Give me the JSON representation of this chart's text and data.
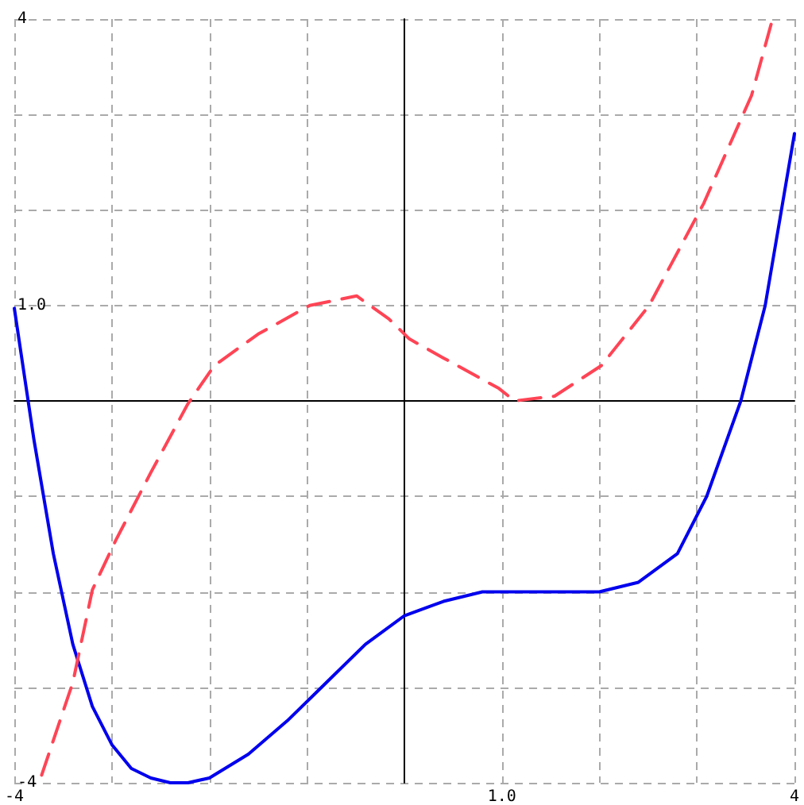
{
  "chart_data": {
    "type": "line",
    "xlim": [
      -4,
      4
    ],
    "ylim": [
      -4,
      4
    ],
    "xticks": [
      {
        "value": -4,
        "label": "-4"
      },
      {
        "value": -3,
        "label": null
      },
      {
        "value": -2,
        "label": null
      },
      {
        "value": -1,
        "label": null
      },
      {
        "value": 0,
        "label": null
      },
      {
        "value": 1,
        "label": "1.0"
      },
      {
        "value": 2,
        "label": null
      },
      {
        "value": 3,
        "label": null
      },
      {
        "value": 4,
        "label": "4"
      }
    ],
    "yticks": [
      {
        "value": -4,
        "label": "-4"
      },
      {
        "value": -3,
        "label": null
      },
      {
        "value": -2,
        "label": null
      },
      {
        "value": -1,
        "label": null
      },
      {
        "value": 0,
        "label": null
      },
      {
        "value": 1,
        "label": "1.0"
      },
      {
        "value": 2,
        "label": null
      },
      {
        "value": 3,
        "label": null
      },
      {
        "value": 4,
        "label": "4"
      }
    ],
    "grid": true,
    "marker": "none",
    "series": [
      {
        "color": "#0000ee",
        "line_style": "solid",
        "x": [
          -4,
          -3.8,
          -3.6,
          -3.4,
          -3.2,
          -3,
          -2.8,
          -2.6,
          -2.4,
          -2.22,
          -2,
          -1.6,
          -1.2,
          -0.8,
          -0.4,
          0,
          0.4,
          0.8,
          1.2,
          1.6,
          2,
          2.4,
          2.8,
          3.1,
          3.45,
          3.7,
          4
        ],
        "values": [
          0.97,
          -0.4,
          -1.6,
          -2.55,
          -3.2,
          -3.6,
          -3.85,
          -3.95,
          -4,
          -4,
          -3.95,
          -3.7,
          -3.35,
          -2.95,
          -2.55,
          -2.25,
          -2.1,
          -2,
          -2,
          -2,
          -2,
          -1.9,
          -1.6,
          -1,
          0,
          1,
          2.8
        ]
      },
      {
        "color": "#ff4455",
        "line_style": "dashed",
        "x": [
          -3.72,
          -3.4,
          -3.2,
          -2.96,
          -2.6,
          -2.22,
          -1.95,
          -1.5,
          -0.97,
          -0.49,
          -0.16,
          0.05,
          0.4,
          0.97,
          1.13,
          1.54,
          2.02,
          2.51,
          3.07,
          3.56,
          3.77
        ],
        "values": [
          -3.92,
          -2.95,
          -1.98,
          -1.46,
          -0.75,
          -0.03,
          0.37,
          0.7,
          1.0,
          1.1,
          0.86,
          0.65,
          0.45,
          0.13,
          0,
          0.05,
          0.37,
          1.0,
          2.07,
          3.2,
          3.98
        ]
      }
    ]
  }
}
